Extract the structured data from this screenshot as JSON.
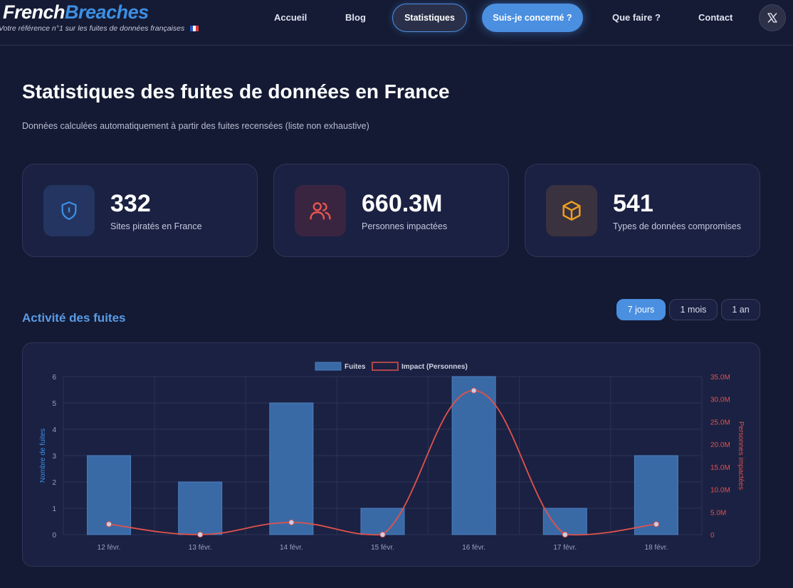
{
  "brand": {
    "name_part1": "French",
    "name_part2": "Breaches",
    "tagline": "Votre référence n°1 sur les fuites de données françaises"
  },
  "nav": {
    "accueil": "Accueil",
    "blog": "Blog",
    "statistiques": "Statistiques",
    "cta": "Suis-je concerné ?",
    "que_faire": "Que faire ?",
    "contact": "Contact"
  },
  "header": {
    "title": "Statistiques des fuites de données en France",
    "subtitle": "Données calculées automatiquement à partir des fuites recensées (liste non exhaustive)"
  },
  "stats": [
    {
      "value": "332",
      "label": "Sites piratés en France",
      "icon": "shield-icon",
      "color": "#3d8fe3"
    },
    {
      "value": "660.3M",
      "label": "Personnes impactées",
      "icon": "users-icon",
      "color": "#e8564f"
    },
    {
      "value": "541",
      "label": "Types de données compromises",
      "icon": "box-icon",
      "color": "#f0a020"
    }
  ],
  "activity": {
    "title": "Activité des fuites",
    "ranges": [
      "7 jours",
      "1 mois",
      "1 an"
    ],
    "selected_range": "7 jours"
  },
  "colors": {
    "accent": "#4a8fe0",
    "bar": "#3a6aa6",
    "impact_line": "#e0524c"
  },
  "chart_data": {
    "type": "bar",
    "categories": [
      "12 févr.",
      "13 févr.",
      "14 févr.",
      "15 févr.",
      "16 févr.",
      "17 févr.",
      "18 févr."
    ],
    "series": [
      {
        "name": "Fuites",
        "type": "bar",
        "axis": "left",
        "values": [
          3,
          2,
          5,
          1,
          6,
          1,
          3
        ]
      },
      {
        "name": "Impact (Personnes)",
        "type": "line",
        "axis": "right",
        "values": [
          2300000,
          0,
          2700000,
          0,
          31900000,
          0,
          2300000
        ]
      }
    ],
    "ylabel": "Nombre de fuites",
    "y2label": "Personnes impactées",
    "ylim": [
      0,
      6
    ],
    "y2lim": [
      0,
      35000000
    ],
    "yticks": [
      "0",
      "1",
      "2",
      "3",
      "4",
      "5",
      "6"
    ],
    "y2ticks": [
      "0",
      "5.0M",
      "10.0M",
      "15.0M",
      "20.0M",
      "25.0M",
      "30.0M",
      "35.0M"
    ],
    "legend_position": "top",
    "grid": true
  }
}
